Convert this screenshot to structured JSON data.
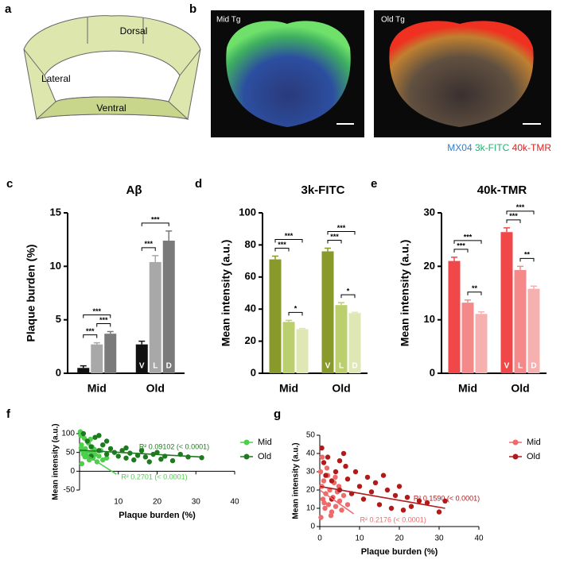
{
  "panel_labels": [
    "a",
    "b",
    "c",
    "d",
    "e",
    "f",
    "g"
  ],
  "diagram": {
    "regions": [
      "Dorsal",
      "Lateral",
      "Ventral"
    ]
  },
  "images": {
    "captions": [
      "Mid Tg",
      "Old Tg"
    ],
    "channels": [
      {
        "name": "MX04",
        "color": "#2a7fd4"
      },
      {
        "name": "3k-FITC",
        "color": "#22b070"
      },
      {
        "name": "40k-TMR",
        "color": "#e02020"
      }
    ]
  },
  "chart_data": [
    {
      "type": "bar",
      "title": "Aβ",
      "y_label": "Plaque burden (%)",
      "categories": [
        "Mid",
        "Old"
      ],
      "series": [
        {
          "name": "V",
          "color": "#111111",
          "values": [
            0.5,
            2.7
          ],
          "errors": [
            0.2,
            0.3
          ]
        },
        {
          "name": "L",
          "color": "#a8a8a8",
          "values": [
            2.7,
            10.4
          ],
          "errors": [
            0.15,
            0.6
          ]
        },
        {
          "name": "D",
          "color": "#7a7a7a",
          "values": [
            3.7,
            12.4
          ],
          "errors": [
            0.2,
            0.9
          ]
        }
      ],
      "ylim": [
        0,
        15
      ],
      "yticks": [
        0,
        5,
        10,
        15
      ],
      "significance": [
        [
          {
            "pair": [
              0,
              1
            ],
            "label": "***"
          },
          {
            "pair": [
              1,
              2
            ],
            "label": "***"
          },
          {
            "pair": [
              0,
              2
            ],
            "label": "***"
          }
        ],
        [
          {
            "pair": [
              0,
              1
            ],
            "label": "***"
          },
          {
            "pair": [
              0,
              2
            ],
            "label": "***"
          }
        ]
      ]
    },
    {
      "type": "bar",
      "title": "3k-FITC",
      "y_label": "Mean intensity (a.u.)",
      "categories": [
        "Mid",
        "Old"
      ],
      "series": [
        {
          "name": "V",
          "color": "#8a9a2a",
          "values": [
            71,
            76
          ],
          "errors": [
            2,
            2
          ]
        },
        {
          "name": "L",
          "color": "#bccf6e",
          "values": [
            32,
            42.5
          ],
          "errors": [
            1,
            1.5
          ]
        },
        {
          "name": "D",
          "color": "#dfe7b5",
          "values": [
            27.5,
            37.5
          ],
          "errors": [
            0.5,
            0.5
          ]
        }
      ],
      "ylim": [
        0,
        100
      ],
      "yticks": [
        0,
        20,
        40,
        60,
        80,
        100
      ],
      "significance": [
        [
          {
            "pair": [
              0,
              1
            ],
            "label": "***"
          },
          {
            "pair": [
              1,
              2
            ],
            "label": "*"
          },
          {
            "pair": [
              0,
              2
            ],
            "label": "***"
          }
        ],
        [
          {
            "pair": [
              0,
              1
            ],
            "label": "***"
          },
          {
            "pair": [
              1,
              2
            ],
            "label": "*"
          },
          {
            "pair": [
              0,
              2
            ],
            "label": "***"
          }
        ]
      ]
    },
    {
      "type": "bar",
      "title": "40k-TMR",
      "y_label": "Mean intensity (a.u.)",
      "categories": [
        "Mid",
        "Old"
      ],
      "series": [
        {
          "name": "V",
          "color": "#f04848",
          "values": [
            21,
            26.4
          ],
          "errors": [
            0.7,
            0.8
          ]
        },
        {
          "name": "L",
          "color": "#f58888",
          "values": [
            13.2,
            19.3
          ],
          "errors": [
            0.5,
            0.7
          ]
        },
        {
          "name": "D",
          "color": "#f7b0b0",
          "values": [
            11.1,
            15.8
          ],
          "errors": [
            0.4,
            0.5
          ]
        }
      ],
      "ylim": [
        0,
        30
      ],
      "yticks": [
        0,
        10,
        20,
        30
      ],
      "significance": [
        [
          {
            "pair": [
              0,
              1
            ],
            "label": "***"
          },
          {
            "pair": [
              1,
              2
            ],
            "label": "**"
          },
          {
            "pair": [
              0,
              2
            ],
            "label": "***"
          }
        ],
        [
          {
            "pair": [
              0,
              1
            ],
            "label": "***"
          },
          {
            "pair": [
              1,
              2
            ],
            "label": "**"
          },
          {
            "pair": [
              0,
              2
            ],
            "label": "***"
          }
        ]
      ]
    },
    {
      "type": "scatter",
      "x_label": "Plaque burden (%)",
      "y_label": "Mean intensity (a.u.)",
      "xlim": [
        0,
        40
      ],
      "ylim": [
        -50,
        100
      ],
      "xticks": [
        10,
        20,
        30,
        40
      ],
      "yticks": [
        -50,
        0,
        50,
        100
      ],
      "legend": "right",
      "series": [
        {
          "name": "Mid",
          "color": "#4cd04c",
          "x": [
            0.3,
            0.5,
            0.8,
            1,
            1.2,
            1.5,
            2,
            2.3,
            2.5,
            3,
            3.2,
            3.5,
            4,
            4.5,
            5,
            5.5,
            6,
            0.2,
            0.6,
            1.8,
            2.8,
            3.8,
            7,
            0.4,
            1.4
          ],
          "values": [
            95,
            70,
            55,
            45,
            88,
            60,
            40,
            75,
            30,
            50,
            65,
            35,
            45,
            25,
            40,
            55,
            30,
            105,
            20,
            50,
            85,
            58,
            35,
            62,
            38
          ],
          "fit": {
            "x": [
              0,
              9.5
            ],
            "values": [
              55,
              -8
            ],
            "label": "R² 0.2701 (< 0.0001)"
          }
        },
        {
          "name": "Old",
          "color": "#1e7a1e",
          "x": [
            1,
            2,
            3,
            4,
            5,
            6,
            7,
            8,
            9,
            10,
            11,
            12,
            13,
            14,
            15,
            16,
            17,
            18,
            19,
            20,
            21,
            22,
            24,
            26,
            28,
            31.5,
            5,
            3,
            7,
            12
          ],
          "values": [
            100,
            80,
            65,
            90,
            55,
            70,
            45,
            60,
            50,
            40,
            55,
            35,
            48,
            30,
            42,
            55,
            38,
            25,
            45,
            50,
            32,
            40,
            28,
            45,
            38,
            36,
            95,
            40,
            80,
            62
          ],
          "fit": {
            "x": [
              0,
              31
            ],
            "values": [
              56,
              38
            ],
            "label": "R² 0.09102 (< 0.0001)"
          }
        }
      ]
    },
    {
      "type": "scatter",
      "x_label": "Plaque burden (%)",
      "y_label": "Mean intensity (a.u.)",
      "xlim": [
        0,
        40
      ],
      "ylim": [
        0,
        50
      ],
      "xticks": [
        0,
        10,
        20,
        30,
        40
      ],
      "yticks": [
        0,
        10,
        20,
        30,
        40,
        50
      ],
      "legend": "right",
      "series": [
        {
          "name": "Mid",
          "color": "#f06a6a",
          "x": [
            0.2,
            0.5,
            0.8,
            1,
            1.3,
            1.5,
            2,
            2.2,
            2.5,
            3,
            3.3,
            3.6,
            4,
            4.4,
            5,
            5.5,
            6,
            7,
            0.3,
            1.8,
            2.8,
            4.8,
            0.6,
            1.1,
            3.9
          ],
          "values": [
            30,
            22,
            15,
            25,
            10,
            18,
            28,
            12,
            20,
            8,
            16,
            24,
            11,
            19,
            14,
            9,
            17,
            12,
            5,
            32,
            6,
            22,
            38,
            13,
            27
          ],
          "fit": {
            "x": [
              0,
              8.5
            ],
            "values": [
              20,
              7
            ],
            "label": "R² 0.2176 (< 0.0001)"
          }
        },
        {
          "name": "Old",
          "color": "#b01a1a",
          "x": [
            0.5,
            1,
            1.5,
            2,
            3,
            4,
            5,
            6,
            6.5,
            7,
            8,
            9,
            10,
            11,
            12,
            13,
            14,
            15,
            16,
            17,
            18,
            19,
            20,
            21,
            22,
            23,
            25,
            27,
            30,
            31.5,
            5,
            3
          ],
          "values": [
            43,
            35,
            28,
            38,
            25,
            30,
            20,
            40,
            33,
            26,
            18,
            30,
            22,
            15,
            27,
            19,
            24,
            12,
            28,
            20,
            10,
            17,
            22,
            9,
            16,
            11,
            14,
            13,
            8,
            14,
            36,
            15
          ],
          "fit": {
            "x": [
              0,
              31.5
            ],
            "values": [
              22,
              10
            ],
            "label": "R² 0.1590 (< 0.0001)"
          }
        }
      ]
    }
  ]
}
